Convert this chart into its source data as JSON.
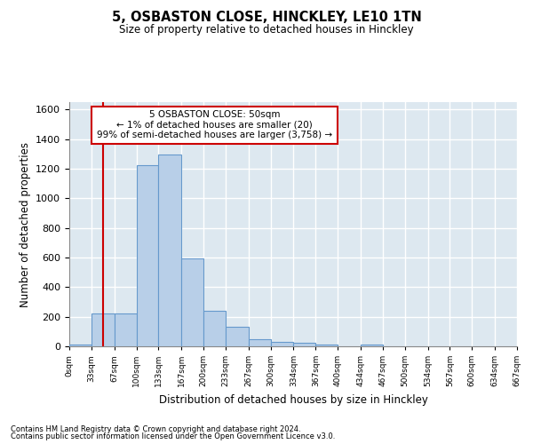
{
  "title": "5, OSBASTON CLOSE, HINCKLEY, LE10 1TN",
  "subtitle": "Size of property relative to detached houses in Hinckley",
  "xlabel": "Distribution of detached houses by size in Hinckley",
  "ylabel": "Number of detached properties",
  "bar_color": "#b8cfe8",
  "bar_edge_color": "#6699cc",
  "background_color": "#dde8f0",
  "grid_color": "#ffffff",
  "annotation_box_color": "#cc0000",
  "annotation_line1": "5 OSBASTON CLOSE: 50sqm",
  "annotation_line2": "← 1% of detached houses are smaller (20)",
  "annotation_line3": "99% of semi-detached houses are larger (3,758) →",
  "property_line_x": 50,
  "property_line_color": "#cc0000",
  "footnote1": "Contains HM Land Registry data © Crown copyright and database right 2024.",
  "footnote2": "Contains public sector information licensed under the Open Government Licence v3.0.",
  "bin_edges": [
    0,
    33,
    67,
    100,
    133,
    167,
    200,
    233,
    267,
    300,
    334,
    367,
    400,
    434,
    467,
    500,
    534,
    567,
    600,
    634,
    667
  ],
  "bar_heights": [
    10,
    220,
    220,
    1225,
    1295,
    595,
    240,
    135,
    50,
    30,
    25,
    15,
    0,
    15,
    0,
    0,
    0,
    0,
    0,
    0
  ],
  "ylim": [
    0,
    1650
  ],
  "yticks": [
    0,
    200,
    400,
    600,
    800,
    1000,
    1200,
    1400,
    1600
  ]
}
